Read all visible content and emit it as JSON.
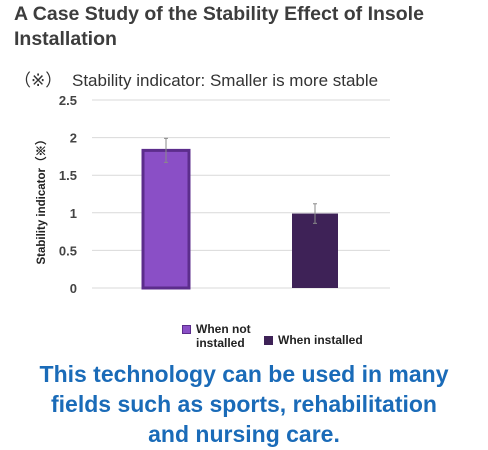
{
  "title": "A Case Study of the Stability Effect of Insole Installation",
  "note": {
    "mark": "（※）",
    "text": "Stability indicator: Smaller is more stable"
  },
  "chart_data": {
    "type": "bar",
    "title": "",
    "ylabel": "Stability indicator（※）",
    "xlabel": "",
    "ylim": [
      0,
      2.5
    ],
    "yticks": [
      "0",
      "0.5",
      "1",
      "1.5",
      "2",
      "2.5"
    ],
    "grid": true,
    "legend_position": "bottom",
    "categories": [
      "When not installed",
      "When installed"
    ],
    "values": [
      1.83,
      0.99
    ],
    "error": [
      0.16,
      0.13
    ],
    "colors": [
      "#8a4fc6",
      "#3e2257"
    ]
  },
  "legend": {
    "items": [
      {
        "label_line1": "When not",
        "label_line2": "installed",
        "color": "#8a4fc6"
      },
      {
        "label": "When installed",
        "color": "#3e2257"
      }
    ]
  },
  "footer": {
    "line1": "This technology can be used in many",
    "line2": "fields such as sports, rehabilitation",
    "line3": "and nursing care."
  }
}
